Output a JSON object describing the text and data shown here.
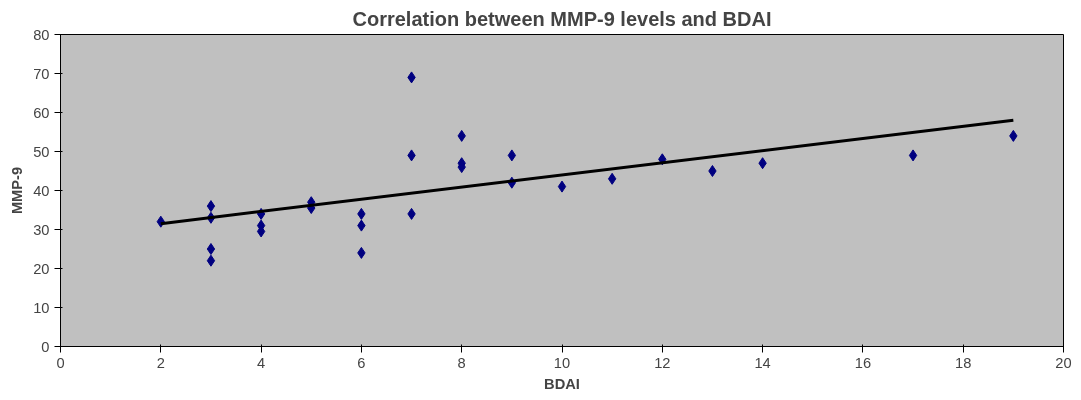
{
  "chart_data": {
    "type": "scatter",
    "title": "Correlation between MMP-9 levels and BDAI",
    "xlabel": "BDAI",
    "ylabel": "MMP-9",
    "xlim": [
      0,
      20
    ],
    "xticks": [
      0,
      2,
      4,
      6,
      8,
      10,
      12,
      14,
      16,
      18,
      20
    ],
    "ylim": [
      0,
      80
    ],
    "yticks": [
      0,
      10,
      20,
      30,
      40,
      50,
      60,
      70,
      80
    ],
    "grid": false,
    "marker": "diamond",
    "series": [
      {
        "color": "#000080",
        "x": [
          2,
          3,
          3,
          3,
          3,
          4,
          4,
          4,
          5,
          5,
          6,
          6,
          6,
          7,
          7,
          7,
          8,
          8,
          8,
          9,
          9,
          10,
          11,
          12,
          13,
          14,
          17,
          19
        ],
        "values": [
          32,
          36,
          33,
          25,
          22,
          34,
          31,
          29.5,
          37,
          35.5,
          34,
          31,
          24,
          69,
          49,
          34,
          54,
          47,
          46,
          49,
          42,
          41,
          43,
          48,
          45,
          47,
          49,
          54
        ]
      },
      {
        "type": "line",
        "color": "#000000",
        "marker": "none",
        "x": [
          2,
          19
        ],
        "values": [
          31.5,
          58
        ]
      }
    ]
  }
}
